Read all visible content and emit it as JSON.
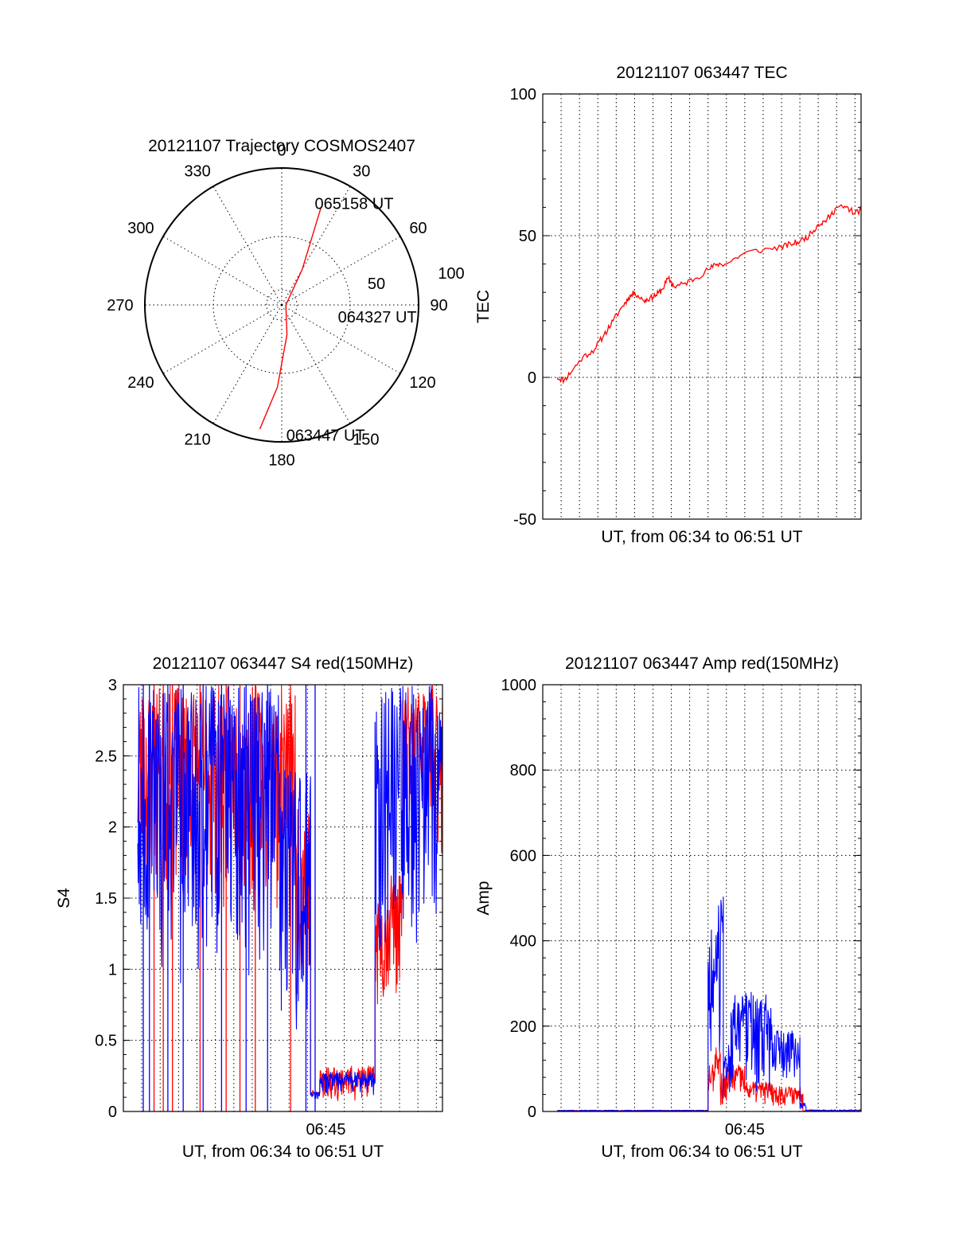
{
  "colors": {
    "red": "#ff0000",
    "blue": "#0000ff",
    "axis": "#000000"
  },
  "chart_data": [
    {
      "type": "polar",
      "id": "trajectory",
      "title": "20121107 Trajectory COSMOS2407",
      "azimuth_labels": [
        "0",
        "30",
        "60",
        "90",
        "120",
        "150",
        "180",
        "210",
        "240",
        "270",
        "300",
        "330"
      ],
      "radial_ticks": [
        50,
        100
      ],
      "rmax": 100,
      "series": [
        {
          "color": "red",
          "points": [
            {
              "az": 190,
              "r": 92
            },
            {
              "az": 183,
              "r": 60
            },
            {
              "az": 170,
              "r": 22
            },
            {
              "az": 90,
              "r": 3
            },
            {
              "az": 30,
              "r": 30
            },
            {
              "az": 22,
              "r": 76
            }
          ]
        }
      ],
      "annotations": [
        {
          "text": "065158 UT",
          "az": 18,
          "r": 78
        },
        {
          "text": "064327 UT",
          "az": 102,
          "r": 42
        },
        {
          "text": "063447 UT",
          "az": 178,
          "r": 95
        }
      ]
    },
    {
      "type": "line",
      "id": "tec",
      "title": "20121107 063447 TEC",
      "xlabel": "UT, from 06:34 to 06:51 UT",
      "ylabel": "TEC",
      "xlim": [
        "06:34:00",
        "06:51:20"
      ],
      "ylim": [
        -50,
        100
      ],
      "yticks": [
        -50,
        0,
        50,
        100
      ],
      "grid": true,
      "series": [
        {
          "color": "red",
          "x": [
            "06:34:47",
            "06:35:10",
            "06:35:40",
            "06:36:10",
            "06:36:50",
            "06:37:20",
            "06:37:50",
            "06:38:20",
            "06:38:40",
            "06:39:00",
            "06:39:30",
            "06:39:50",
            "06:40:10",
            "06:40:30",
            "06:40:50",
            "06:41:10",
            "06:41:40",
            "06:42:20",
            "06:43:00",
            "06:43:30",
            "06:44:00",
            "06:45:00",
            "06:46:00",
            "06:47:00",
            "06:47:30",
            "06:48:00",
            "06:48:30",
            "06:49:00",
            "06:49:20",
            "06:49:40",
            "06:50:00",
            "06:50:30",
            "06:51:00",
            "06:51:20"
          ],
          "y": [
            0,
            -1,
            3,
            7,
            10,
            15,
            20,
            25,
            28,
            30,
            27,
            28,
            29,
            31,
            35,
            32,
            33,
            35,
            38,
            40,
            40,
            44,
            45,
            46,
            47,
            48,
            50,
            54,
            55,
            57,
            60,
            60,
            58,
            59
          ]
        }
      ]
    },
    {
      "type": "line",
      "id": "s4",
      "title": "20121107 063447 S4 red(150MHz)",
      "xlabel": "UT, from 06:34 to 06:51 UT",
      "ylabel": "S4",
      "xlim": [
        "06:34:00",
        "06:51:20"
      ],
      "ylim": [
        0,
        3
      ],
      "yticks": [
        0,
        0.5,
        1,
        1.5,
        2,
        2.5,
        3
      ],
      "xticks": [
        "06:45"
      ],
      "grid": true,
      "series": [
        {
          "color": "red",
          "segments": [
            {
              "x0": "06:34:47",
              "x1": "06:43:20",
              "lo": 1.3,
              "hi": 3.0
            },
            {
              "x0": "06:43:20",
              "x1": "06:44:10",
              "lo": 0.8,
              "hi": 2.2
            },
            {
              "x0": "06:44:10",
              "x1": "06:44:40",
              "lo": 0.08,
              "hi": 0.15
            },
            {
              "x0": "06:44:40",
              "x1": "06:47:40",
              "lo": 0.06,
              "hi": 0.32
            },
            {
              "x0": "06:47:40",
              "x1": "06:48:20",
              "lo": 0.7,
              "hi": 1.5
            },
            {
              "x0": "06:48:20",
              "x1": "06:49:10",
              "lo": 0.8,
              "hi": 1.7
            },
            {
              "x0": "06:49:10",
              "x1": "06:51:20",
              "lo": 1.8,
              "hi": 3.0
            }
          ],
          "spikes": [
            {
              "x": "06:35:40",
              "lo": 0,
              "hi": 3
            },
            {
              "x": "06:36:10",
              "lo": 0,
              "hi": 3
            },
            {
              "x": "06:36:40",
              "lo": 0,
              "hi": 3
            },
            {
              "x": "06:38:10",
              "lo": 0,
              "hi": 3
            },
            {
              "x": "06:39:35",
              "lo": 0,
              "hi": 3
            },
            {
              "x": "06:40:20",
              "lo": 0,
              "hi": 3
            },
            {
              "x": "06:41:10",
              "lo": 0,
              "hi": 3
            },
            {
              "x": "06:43:05",
              "lo": 0,
              "hi": 3
            }
          ]
        },
        {
          "color": "blue",
          "segments": [
            {
              "x0": "06:34:47",
              "x1": "06:42:30",
              "lo": 0.9,
              "hi": 3.0
            },
            {
              "x0": "06:42:30",
              "x1": "06:44:10",
              "lo": 0.5,
              "hi": 2.4
            },
            {
              "x0": "06:44:10",
              "x1": "06:44:40",
              "lo": 0.08,
              "hi": 0.14
            },
            {
              "x0": "06:44:40",
              "x1": "06:47:40",
              "lo": 0.1,
              "hi": 0.28
            },
            {
              "x0": "06:47:40",
              "x1": "06:51:20",
              "lo": 1.0,
              "hi": 3.0
            }
          ],
          "spikes": [
            {
              "x": "06:35:05",
              "lo": 0,
              "hi": 3
            },
            {
              "x": "06:35:25",
              "lo": 0,
              "hi": 3
            },
            {
              "x": "06:36:25",
              "lo": 0,
              "hi": 3
            },
            {
              "x": "06:37:15",
              "lo": 0,
              "hi": 3
            },
            {
              "x": "06:38:20",
              "lo": 0,
              "hi": 3
            },
            {
              "x": "06:39:20",
              "lo": 0,
              "hi": 3
            },
            {
              "x": "06:40:40",
              "lo": 0,
              "hi": 3
            },
            {
              "x": "06:41:50",
              "lo": 0,
              "hi": 3
            },
            {
              "x": "06:43:55",
              "lo": 0,
              "hi": 3
            },
            {
              "x": "06:44:25",
              "lo": 0,
              "hi": 3
            }
          ]
        }
      ]
    },
    {
      "type": "line",
      "id": "amp",
      "title": "20121107 063447 Amp red(150MHz)",
      "xlabel": "UT, from 06:34 to 06:51 UT",
      "ylabel": "Amp",
      "xlim": [
        "06:34:00",
        "06:51:20"
      ],
      "ylim": [
        0,
        1000
      ],
      "yticks": [
        0,
        200,
        400,
        600,
        800,
        1000
      ],
      "xticks": [
        "06:45"
      ],
      "grid": true,
      "series": [
        {
          "color": "red",
          "segments": [
            {
              "x0": "06:34:47",
              "x1": "06:43:00",
              "lo": 0,
              "hi": 3
            },
            {
              "x0": "06:43:00",
              "x1": "06:43:20",
              "lo": 30,
              "hi": 110
            },
            {
              "x0": "06:43:20",
              "x1": "06:43:40",
              "lo": 60,
              "hi": 150
            },
            {
              "x0": "06:43:40",
              "x1": "06:44:00",
              "lo": 0,
              "hi": 90
            },
            {
              "x0": "06:44:00",
              "x1": "06:45:00",
              "lo": 20,
              "hi": 110
            },
            {
              "x0": "06:45:00",
              "x1": "06:46:30",
              "lo": 15,
              "hi": 70
            },
            {
              "x0": "06:46:30",
              "x1": "06:48:10",
              "lo": 10,
              "hi": 60
            },
            {
              "x0": "06:48:10",
              "x1": "06:51:20",
              "lo": 0,
              "hi": 3
            }
          ]
        },
        {
          "color": "blue",
          "segments": [
            {
              "x0": "06:34:47",
              "x1": "06:43:00",
              "lo": 0,
              "hi": 3
            },
            {
              "x0": "06:43:00",
              "x1": "06:43:25",
              "lo": 100,
              "hi": 430
            },
            {
              "x0": "06:43:25",
              "x1": "06:43:50",
              "lo": 120,
              "hi": 510
            },
            {
              "x0": "06:43:50",
              "x1": "06:44:15",
              "lo": 0,
              "hi": 160
            },
            {
              "x0": "06:44:15",
              "x1": "06:46:30",
              "lo": 40,
              "hi": 280
            },
            {
              "x0": "06:46:30",
              "x1": "06:48:00",
              "lo": 40,
              "hi": 190
            },
            {
              "x0": "06:48:00",
              "x1": "06:48:20",
              "lo": 0,
              "hi": 20
            },
            {
              "x0": "06:48:20",
              "x1": "06:51:20",
              "lo": 0,
              "hi": 4
            }
          ]
        }
      ]
    }
  ]
}
